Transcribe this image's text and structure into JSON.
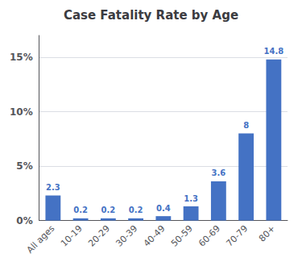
{
  "chart_data": {
    "type": "bar",
    "title": "Case Fatality Rate by Age",
    "categories": [
      "All ages",
      "10-19",
      "20-29",
      "30-39",
      "40-49",
      "50-59",
      "60-69",
      "70-79",
      "80+"
    ],
    "values": [
      2.3,
      0.2,
      0.2,
      0.2,
      0.4,
      1.3,
      3.6,
      8,
      14.8
    ],
    "color": "#4472C4",
    "ylim": [
      0,
      17.0
    ],
    "yticks": [
      {
        "value": 0,
        "label": "0%"
      },
      {
        "value": 5,
        "label": "5%"
      },
      {
        "value": 10,
        "label": "10%"
      },
      {
        "value": 15,
        "label": "15%"
      }
    ],
    "grid": true,
    "data_labels": true
  }
}
